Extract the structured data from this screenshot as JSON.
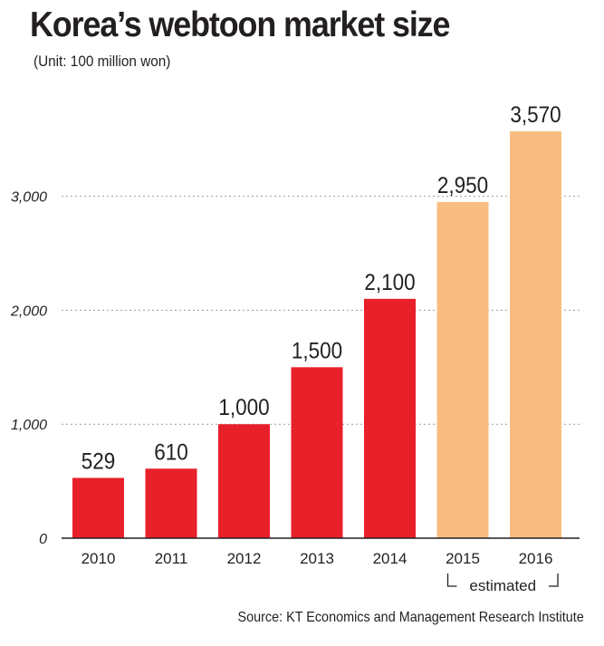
{
  "title": "Korea’s webtoon market size",
  "subtitle": "(Unit: 100 million won)",
  "source": "Source: KT Economics and Management Research Institute",
  "chart_data": {
    "type": "bar",
    "title": "Korea’s webtoon market size",
    "subtitle": "(Unit: 100 million won)",
    "categories": [
      "2010",
      "2011",
      "2012",
      "2013",
      "2014",
      "2015",
      "2016"
    ],
    "values": [
      529,
      610,
      1000,
      1500,
      2100,
      2950,
      3570
    ],
    "data_labels": [
      "529",
      "610",
      "1,000",
      "1,500",
      "2,100",
      "2,950",
      "3,570"
    ],
    "estimated": [
      false,
      false,
      false,
      false,
      false,
      true,
      true
    ],
    "annotation": "estimated",
    "ylim": [
      0,
      3800
    ],
    "yticks": [
      0,
      1000,
      2000,
      3000
    ],
    "ytick_labels": [
      "0",
      "1,000",
      "2,000",
      "3,000"
    ],
    "grid": true,
    "colors": {
      "actual": "#e8202a",
      "estimated": "#f9bd82",
      "grid": "#9a9a9a",
      "axis": "#231f20"
    }
  }
}
